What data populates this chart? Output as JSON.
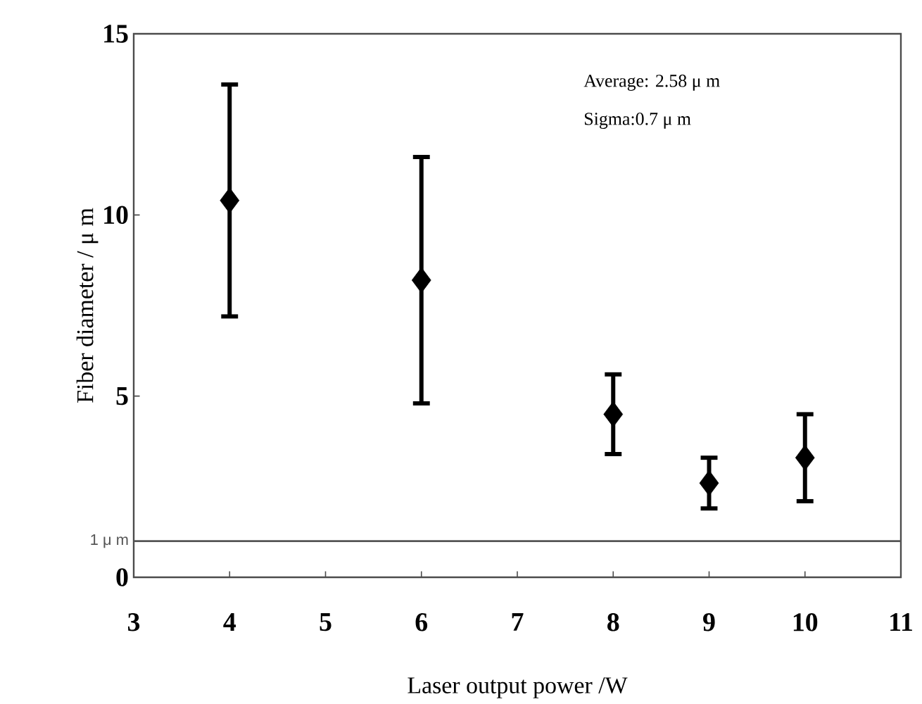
{
  "chart_data": {
    "type": "scatter",
    "xlabel": "Laser output power /W",
    "ylabel": "Fiber diameter / μ m",
    "x": [
      4,
      6,
      8,
      9,
      10
    ],
    "values": [
      10.4,
      8.2,
      4.5,
      2.6,
      3.3
    ],
    "errors": [
      3.2,
      3.4,
      1.1,
      0.7,
      1.2
    ],
    "color": "#000000",
    "marker": "diamond",
    "xlim": [
      3,
      11
    ],
    "xticks": [
      3,
      4,
      5,
      6,
      7,
      8,
      9,
      10,
      11
    ],
    "ylim": [
      0,
      15
    ],
    "yticks": [
      0,
      5,
      10,
      15
    ],
    "ref_lines": [
      {
        "axis": "y",
        "value": 1,
        "label": "1 μ m",
        "color": "#555555"
      }
    ],
    "annotations": [
      "Average: 2.58 μ m",
      "Sigma:0.7 μ m"
    ],
    "grid": false
  }
}
